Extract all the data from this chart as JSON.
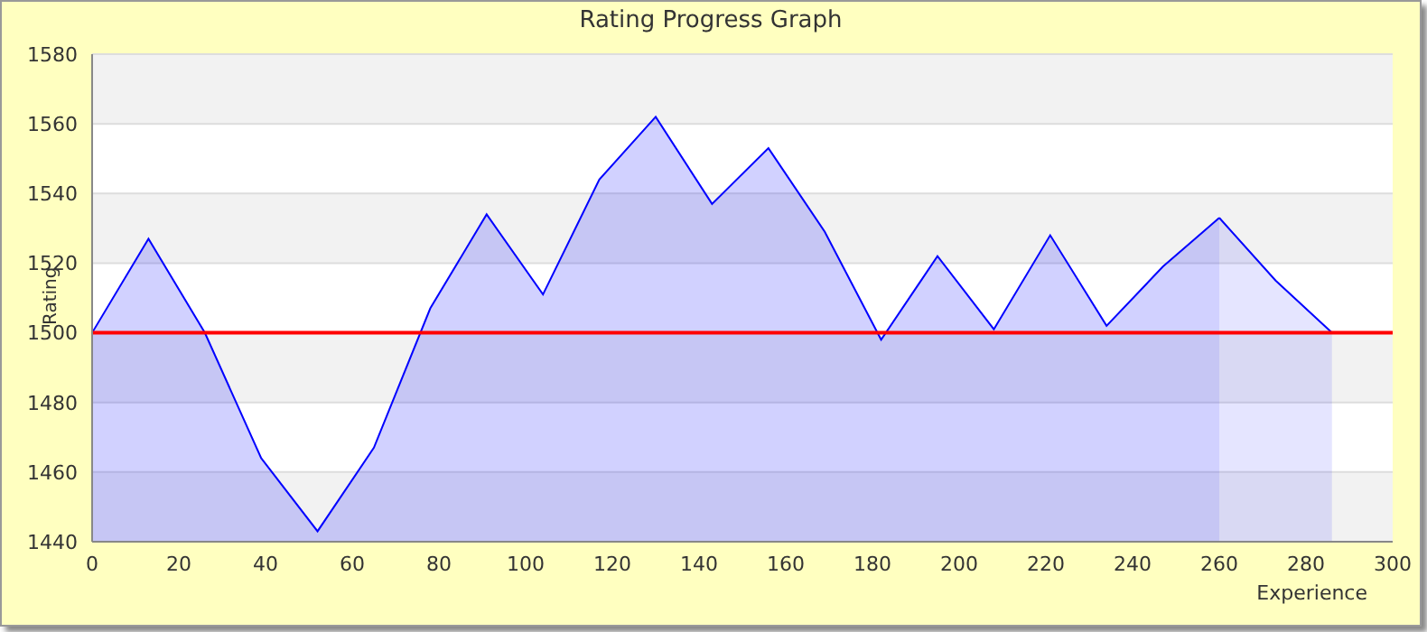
{
  "chart_data": {
    "type": "area",
    "title": "Rating Progress Graph",
    "xlabel": "Experience",
    "ylabel": "Rating",
    "series": [
      {
        "color": "#0000ff",
        "x": [
          0,
          13,
          26,
          39,
          52,
          65,
          78,
          91,
          104,
          117,
          130,
          143,
          156,
          169,
          182,
          195,
          208,
          221,
          234,
          247,
          260
        ],
        "values": [
          1500,
          1527,
          1500,
          1464,
          1443,
          1467,
          1507,
          1534,
          1511,
          1544,
          1562,
          1537,
          1553,
          1529,
          1498,
          1522,
          1501,
          1528,
          1502,
          1519,
          1533
        ]
      },
      {
        "color": "#0000ff",
        "x": [
          260,
          273,
          286
        ],
        "values": [
          1533,
          1515,
          1500
        ]
      }
    ],
    "xlim": [
      0,
      300
    ],
    "xticks": [
      0,
      20,
      40,
      60,
      80,
      100,
      120,
      140,
      160,
      180,
      200,
      220,
      240,
      260,
      280,
      300
    ],
    "ylim": [
      1440,
      1580
    ],
    "yticks": [
      1440,
      1460,
      1480,
      1500,
      1520,
      1540,
      1560,
      1580
    ],
    "grid": "y",
    "legend": false,
    "ref_lines": [
      {
        "axis": "y",
        "value": 1500,
        "color": "#ff0000"
      }
    ]
  }
}
